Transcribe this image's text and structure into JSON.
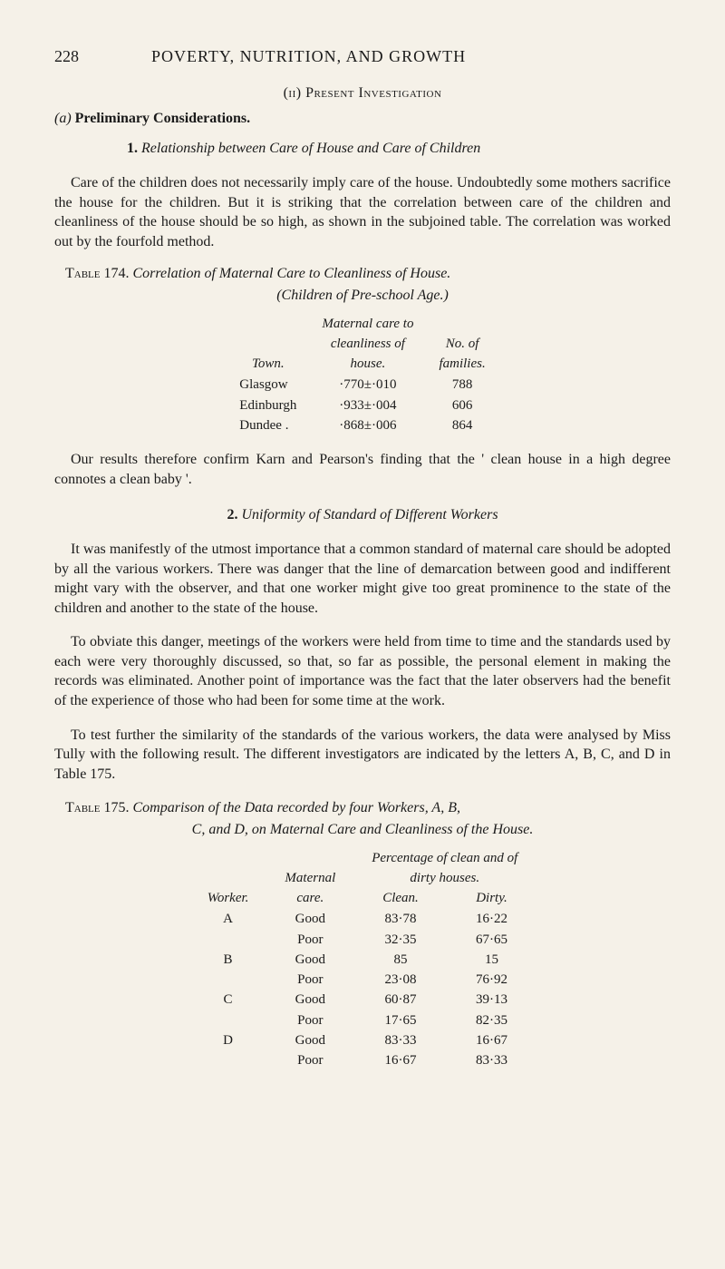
{
  "header": {
    "page_number": "228",
    "running_title": "POVERTY, NUTRITION, AND GROWTH"
  },
  "section": {
    "roman_subtitle": "(ii) Present Investigation",
    "prelim_prefix": "(a) ",
    "prelim_heading": "Preliminary Considerations.",
    "sub1_number": "1.",
    "sub1_title": "Relationship between Care of House and Care of Children",
    "para1": "Care of the children does not necessarily imply care of the house. Undoubtedly some mothers sacrifice the house for the children. But it is striking that the correlation between care of the children and cleanliness of the house should be so high, as shown in the subjoined table. The correlation was worked out by the fourfold method."
  },
  "table174": {
    "label": "Table 174.",
    "title": "Correlation of Maternal Care to Cleanliness of House.",
    "subtitle": "(Children of Pre-school Age.)",
    "headers": {
      "col1": "Town.",
      "col2a": "Maternal care to",
      "col2b": "cleanliness of",
      "col2c": "house.",
      "col3a": "No. of",
      "col3b": "families."
    },
    "rows": [
      {
        "town": "Glasgow",
        "corr": "·770±·010",
        "n": "788"
      },
      {
        "town": "Edinburgh",
        "corr": "·933±·004",
        "n": "606"
      },
      {
        "town": "Dundee .",
        "corr": "·868±·006",
        "n": "864"
      }
    ]
  },
  "para2": "Our results therefore confirm Karn and Pearson's finding that the ' clean house in a high degree connotes a clean baby '.",
  "sub2": {
    "number": "2.",
    "title": "Uniformity of Standard of Different Workers",
    "para1": "It was manifestly of the utmost importance that a common standard of maternal care should be adopted by all the various workers. There was danger that the line of demarcation between good and indifferent might vary with the observer, and that one worker might give too great prominence to the state of the children and another to the state of the house.",
    "para2": "To obviate this danger, meetings of the workers were held from time to time and the standards used by each were very thoroughly discussed, so that, so far as possible, the personal element in making the records was eliminated. Another point of importance was the fact that the later observers had the benefit of the experience of those who had been for some time at the work.",
    "para3": "To test further the similarity of the standards of the various workers, the data were analysed by Miss Tully with the following result. The different investigators are indicated by the letters A, B, C, and D in Table 175."
  },
  "table175": {
    "label": "Table 175.",
    "title_line1": "Comparison of the Data recorded by four Workers, A, B,",
    "title_line2": "C, and D, on Maternal Care and Cleanliness of the House.",
    "super_header": "Percentage of clean and of",
    "super_header2": "dirty houses.",
    "headers": {
      "worker": "Worker.",
      "care": "Maternal",
      "care2": "care.",
      "clean": "Clean.",
      "dirty": "Dirty."
    },
    "rows": [
      {
        "w": "A",
        "c": "Good",
        "cl": "83·78",
        "d": "16·22"
      },
      {
        "w": "",
        "c": "Poor",
        "cl": "32·35",
        "d": "67·65"
      },
      {
        "w": "B",
        "c": "Good",
        "cl": "85",
        "d": "15"
      },
      {
        "w": "",
        "c": "Poor",
        "cl": "23·08",
        "d": "76·92"
      },
      {
        "w": "C",
        "c": "Good",
        "cl": "60·87",
        "d": "39·13"
      },
      {
        "w": "",
        "c": "Poor",
        "cl": "17·65",
        "d": "82·35"
      },
      {
        "w": "D",
        "c": "Good",
        "cl": "83·33",
        "d": "16·67"
      },
      {
        "w": "",
        "c": "Poor",
        "cl": "16·67",
        "d": "83·33"
      }
    ]
  }
}
